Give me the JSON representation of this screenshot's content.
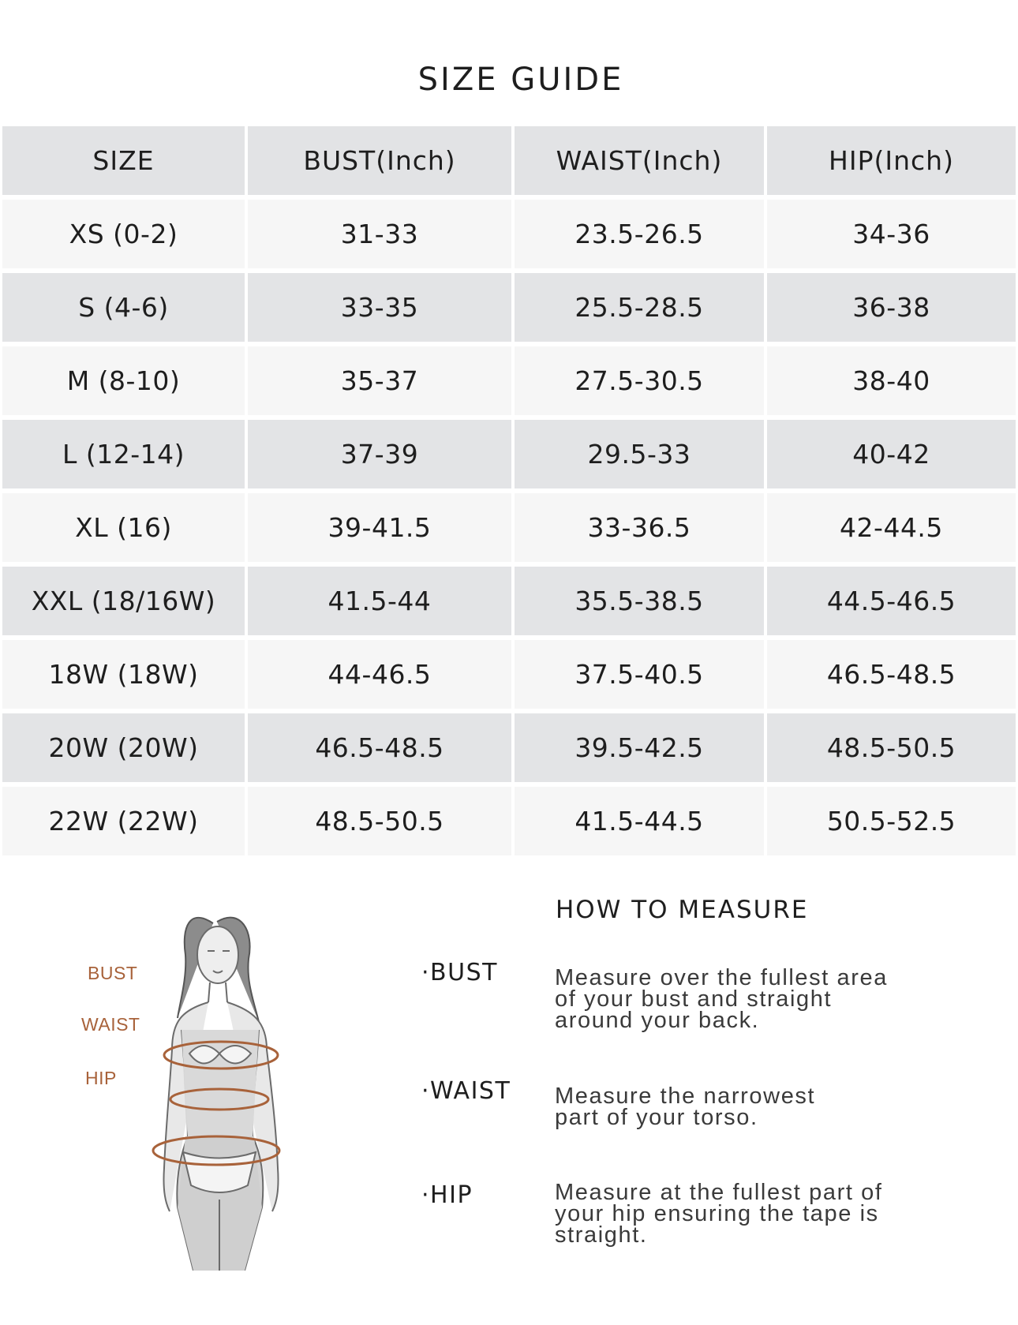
{
  "title": "SIZE GUIDE",
  "table": {
    "headers": [
      "SIZE",
      "BUST(Inch)",
      "WAIST(Inch)",
      "HIP(Inch)"
    ],
    "rows": [
      [
        "XS (0-2)",
        "31-33",
        "23.5-26.5",
        "34-36"
      ],
      [
        "S (4-6)",
        "33-35",
        "25.5-28.5",
        "36-38"
      ],
      [
        "M (8-10)",
        "35-37",
        "27.5-30.5",
        "38-40"
      ],
      [
        "L (12-14)",
        "37-39",
        "29.5-33",
        "40-42"
      ],
      [
        "XL (16)",
        "39-41.5",
        "33-36.5",
        "42-44.5"
      ],
      [
        "XXL (18/16W)",
        "41.5-44",
        "35.5-38.5",
        "44.5-46.5"
      ],
      [
        "18W (18W)",
        "44-46.5",
        "37.5-40.5",
        "46.5-48.5"
      ],
      [
        "20W (20W)",
        "46.5-48.5",
        "39.5-42.5",
        "48.5-50.5"
      ],
      [
        "22W (22W)",
        "48.5-50.5",
        "41.5-44.5",
        "50.5-52.5"
      ]
    ]
  },
  "figure": {
    "labels": {
      "bust": "BUST",
      "waist": "WAIST",
      "hip": "HIP"
    },
    "label_color": "#a8623a"
  },
  "how_to_measure": {
    "heading": "HOW TO MEASURE",
    "items": [
      {
        "label": "·BUST",
        "lines": [
          "Measure over the fullest area",
          "of your bust and straight",
          "around your back."
        ]
      },
      {
        "label": "·WAIST",
        "lines": [
          "Measure the narrowest",
          "part of your torso."
        ]
      },
      {
        "label": "·HIP",
        "lines": [
          "Measure at the fullest part of",
          "your hip ensuring the tape is",
          "straight."
        ]
      }
    ]
  },
  "colors": {
    "header_bg": "#e2e3e5",
    "row_light": "#f6f6f6",
    "row_dark": "#e3e4e6"
  }
}
